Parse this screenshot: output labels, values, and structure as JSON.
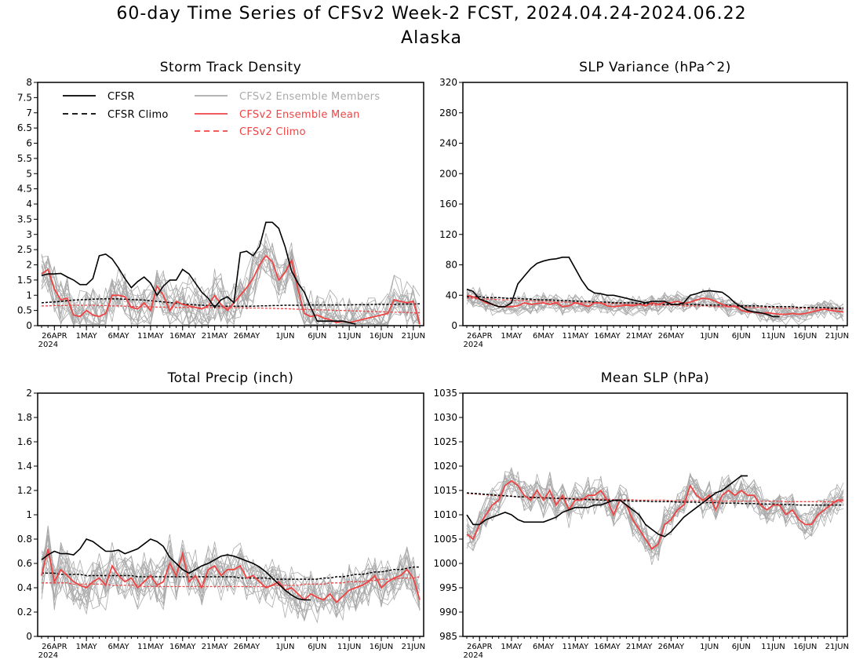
{
  "header": {
    "title_line1": "60-day Time Series of CFSv2 Week-2 FCST, 2024.04.24-2024.06.22",
    "title_line2": "Alaska"
  },
  "legend": {
    "cfsr": "CFSR",
    "cfsr_climo": "CFSR Climo",
    "members": "CFSv2 Ensemble Members",
    "mean": "CFSv2 Ensemble Mean",
    "cfsv2_climo": "CFSv2 Climo"
  },
  "colors": {
    "cfsr": "#000000",
    "members": "#aaaaaa",
    "mean": "#ee4444",
    "cfsv2_climo": "#ee4444"
  },
  "x_axis": {
    "ticks": [
      {
        "day": 2,
        "label": "26APR",
        "sub": "2024"
      },
      {
        "day": 7,
        "label": "1MAY"
      },
      {
        "day": 12,
        "label": "6MAY"
      },
      {
        "day": 17,
        "label": "11MAY"
      },
      {
        "day": 22,
        "label": "16MAY"
      },
      {
        "day": 27,
        "label": "21MAY"
      },
      {
        "day": 32,
        "label": "26MAY"
      },
      {
        "day": 38,
        "label": "1JUN"
      },
      {
        "day": 43,
        "label": "6JUN"
      },
      {
        "day": 48,
        "label": "11JUN"
      },
      {
        "day": 53,
        "label": "16JUN"
      },
      {
        "day": 58,
        "label": "21JUN"
      }
    ]
  },
  "chart_data": [
    {
      "id": "storm",
      "type": "line",
      "title": "Storm Track Density",
      "x_start": "2024-04-24",
      "x_end": "2024-06-22",
      "ylim": [
        0,
        8
      ],
      "yticks": [
        0,
        0.5,
        1,
        1.5,
        2,
        2.5,
        3,
        3.5,
        4,
        4.5,
        5,
        5.5,
        6,
        6.5,
        7,
        7.5,
        8
      ],
      "ytick_labels": [
        "0",
        "0.5",
        "1",
        "1.5",
        "2",
        "2.5",
        "3",
        "3.5",
        "4",
        "4.5",
        "5",
        "5.5",
        "6",
        "6.5",
        "7",
        "7.5",
        "8"
      ],
      "cfsr": [
        1.65,
        1.7,
        1.7,
        1.72,
        1.6,
        1.5,
        1.35,
        1.35,
        1.55,
        2.3,
        2.35,
        2.2,
        1.9,
        1.55,
        1.25,
        1.45,
        1.6,
        1.4,
        1.0,
        1.3,
        1.5,
        1.5,
        1.85,
        1.7,
        1.4,
        1.1,
        0.9,
        0.6,
        0.85,
        0.95,
        0.75,
        2.4,
        2.45,
        2.3,
        2.6,
        3.4,
        3.4,
        3.2,
        2.6,
        1.8,
        1.4,
        1.1,
        0.6,
        0.15,
        0.15,
        0.15,
        0.15,
        0.15,
        0.1,
        0.05,
        null,
        null,
        null,
        null,
        null,
        null,
        null,
        null,
        null,
        null
      ],
      "cfsr_climo": [
        0.75,
        0.77,
        0.78,
        0.8,
        0.82,
        0.84,
        0.85,
        0.86,
        0.87,
        0.88,
        0.88,
        0.88,
        0.88,
        0.87,
        0.86,
        0.85,
        0.84,
        0.82,
        0.8,
        0.78,
        0.76,
        0.74,
        0.72,
        0.7,
        0.68,
        0.67,
        0.66,
        0.65,
        0.64,
        0.64,
        0.64,
        0.64,
        0.64,
        0.64,
        0.65,
        0.65,
        0.66,
        0.66,
        0.67,
        0.67,
        0.67,
        0.68,
        0.68,
        0.68,
        0.68,
        0.68,
        0.68,
        0.68,
        0.68,
        0.69,
        0.69,
        0.69,
        0.7,
        0.7,
        0.7,
        0.7,
        0.71,
        0.71,
        0.71,
        0.72
      ],
      "mean": [
        1.7,
        1.85,
        1.2,
        0.85,
        0.9,
        0.35,
        0.3,
        0.5,
        0.35,
        0.3,
        0.4,
        1.0,
        1.0,
        0.95,
        0.6,
        0.55,
        0.75,
        0.5,
        1.3,
        1.0,
        0.5,
        0.8,
        0.7,
        0.65,
        0.6,
        0.55,
        0.65,
        1.0,
        0.7,
        0.5,
        0.75,
        1.0,
        1.25,
        1.55,
        2.0,
        2.3,
        2.1,
        1.5,
        1.75,
        2.15,
        1.2,
        0.4,
        0.3,
        0.35,
        0.25,
        0.2,
        0.1,
        0.15,
        0.1,
        0.15,
        0.2,
        0.25,
        0.3,
        0.35,
        0.4,
        0.85,
        0.8,
        0.75,
        0.8,
        0.05
      ],
      "cfsv2_climo": [
        0.65,
        0.65,
        0.66,
        0.66,
        0.66,
        0.67,
        0.67,
        0.67,
        0.67,
        0.66,
        0.66,
        0.65,
        0.65,
        0.64,
        0.63,
        0.63,
        0.62,
        0.62,
        0.61,
        0.61,
        0.6,
        0.6,
        0.6,
        0.6,
        0.59,
        0.59,
        0.59,
        0.59,
        0.59,
        0.59,
        0.59,
        0.59,
        0.58,
        0.58,
        0.58,
        0.57,
        0.57,
        0.56,
        0.56,
        0.55,
        0.54,
        0.54,
        0.53,
        0.52,
        0.52,
        0.51,
        0.5,
        0.5,
        0.49,
        0.48,
        0.48,
        0.47,
        0.46,
        0.46,
        0.45,
        0.44,
        0.44,
        0.43,
        0.42,
        0.42
      ]
    },
    {
      "id": "slpvar",
      "type": "line",
      "title": "SLP Variance (hPa^2)",
      "x_start": "2024-04-24",
      "x_end": "2024-06-22",
      "ylim": [
        0,
        320
      ],
      "yticks": [
        0,
        40,
        80,
        120,
        160,
        200,
        240,
        280,
        320
      ],
      "ytick_labels": [
        "0",
        "40",
        "80",
        "120",
        "160",
        "200",
        "240",
        "280",
        "320"
      ],
      "cfsr": [
        48,
        45,
        35,
        32,
        28,
        25,
        25,
        30,
        55,
        65,
        75,
        82,
        85,
        87,
        88,
        90,
        90,
        75,
        60,
        48,
        43,
        42,
        40,
        40,
        38,
        36,
        34,
        32,
        30,
        32,
        32,
        32,
        28,
        28,
        30,
        40,
        42,
        45,
        46,
        45,
        44,
        38,
        30,
        25,
        20,
        18,
        17,
        15,
        12,
        12,
        null,
        null,
        null,
        null,
        null,
        null,
        null,
        null,
        null,
        null
      ],
      "cfsr_climo": [
        38,
        38,
        38,
        37,
        37,
        37,
        36,
        36,
        36,
        35,
        35,
        34,
        34,
        34,
        33,
        33,
        33,
        32,
        32,
        32,
        31,
        31,
        31,
        30,
        30,
        30,
        30,
        29,
        29,
        29,
        29,
        28,
        28,
        28,
        28,
        28,
        28,
        27,
        27,
        27,
        27,
        27,
        26,
        26,
        26,
        26,
        26,
        25,
        25,
        25,
        25,
        25,
        24,
        24,
        24,
        24,
        24,
        23,
        23,
        23
      ],
      "mean": [
        40,
        38,
        35,
        30,
        28,
        25,
        25,
        25,
        26,
        30,
        28,
        29,
        30,
        28,
        30,
        25,
        26,
        30,
        28,
        25,
        30,
        30,
        26,
        25,
        26,
        27,
        26,
        28,
        26,
        30,
        28,
        31,
        30,
        32,
        29,
        31,
        34,
        36,
        35,
        32,
        28,
        25,
        26,
        20,
        18,
        18,
        16,
        17,
        16,
        15,
        15,
        16,
        15,
        16,
        18,
        20,
        22,
        20,
        19,
        18
      ],
      "cfsv2_climo": [
        36,
        36,
        35,
        35,
        35,
        34,
        34,
        34,
        33,
        33,
        33,
        32,
        32,
        32,
        31,
        31,
        31,
        30,
        30,
        30,
        30,
        29,
        29,
        29,
        29,
        28,
        28,
        28,
        28,
        27,
        27,
        27,
        27,
        27,
        26,
        26,
        26,
        26,
        26,
        25,
        25,
        25,
        25,
        25,
        24,
        24,
        24,
        24,
        24,
        23,
        23,
        23,
        23,
        23,
        22,
        22,
        22,
        22,
        22,
        22
      ]
    },
    {
      "id": "precip",
      "type": "line",
      "title": "Total Precip (inch)",
      "x_start": "2024-04-24",
      "x_end": "2024-06-22",
      "ylim": [
        0,
        2
      ],
      "yticks": [
        0,
        0.2,
        0.4,
        0.6,
        0.8,
        1,
        1.2,
        1.4,
        1.6,
        1.8,
        2
      ],
      "ytick_labels": [
        "0",
        "0.2",
        "0.4",
        "0.6",
        "0.8",
        "1",
        "1.2",
        "1.4",
        "1.6",
        "1.8",
        "2"
      ],
      "cfsr": [
        0.63,
        0.67,
        0.7,
        0.68,
        0.68,
        0.67,
        0.72,
        0.8,
        0.78,
        0.74,
        0.7,
        0.7,
        0.71,
        0.68,
        0.7,
        0.72,
        0.76,
        0.8,
        0.78,
        0.74,
        0.65,
        0.6,
        0.55,
        0.52,
        0.55,
        0.58,
        0.6,
        0.63,
        0.66,
        0.67,
        0.66,
        0.64,
        0.62,
        0.6,
        0.57,
        0.53,
        0.48,
        0.43,
        0.38,
        0.34,
        0.31,
        0.3,
        0.3,
        null,
        null,
        null,
        null,
        null,
        null,
        null,
        null,
        null,
        null,
        null,
        null,
        null,
        null,
        null,
        null,
        null
      ],
      "cfsr_climo": [
        0.52,
        0.52,
        0.52,
        0.51,
        0.51,
        0.51,
        0.51,
        0.5,
        0.5,
        0.5,
        0.5,
        0.5,
        0.5,
        0.5,
        0.5,
        0.49,
        0.49,
        0.49,
        0.49,
        0.49,
        0.49,
        0.49,
        0.49,
        0.49,
        0.49,
        0.49,
        0.49,
        0.49,
        0.49,
        0.49,
        0.49,
        0.48,
        0.48,
        0.48,
        0.48,
        0.48,
        0.47,
        0.47,
        0.47,
        0.47,
        0.47,
        0.47,
        0.47,
        0.47,
        0.48,
        0.48,
        0.49,
        0.49,
        0.5,
        0.51,
        0.51,
        0.52,
        0.53,
        0.53,
        0.54,
        0.55,
        0.55,
        0.56,
        0.57,
        0.57
      ],
      "mean": [
        0.5,
        0.72,
        0.45,
        0.55,
        0.5,
        0.45,
        0.42,
        0.4,
        0.45,
        0.48,
        0.42,
        0.58,
        0.5,
        0.45,
        0.48,
        0.4,
        0.45,
        0.5,
        0.42,
        0.45,
        0.6,
        0.5,
        0.68,
        0.45,
        0.5,
        0.4,
        0.55,
        0.58,
        0.5,
        0.55,
        0.55,
        0.58,
        0.48,
        0.5,
        0.45,
        0.4,
        0.42,
        0.45,
        0.38,
        0.4,
        0.35,
        0.3,
        0.35,
        0.32,
        0.3,
        0.35,
        0.28,
        0.33,
        0.38,
        0.4,
        0.42,
        0.45,
        0.5,
        0.4,
        0.45,
        0.48,
        0.5,
        0.55,
        0.48,
        0.3
      ],
      "cfsv2_climo": [
        0.44,
        0.44,
        0.44,
        0.44,
        0.44,
        0.43,
        0.43,
        0.43,
        0.43,
        0.43,
        0.43,
        0.42,
        0.42,
        0.42,
        0.42,
        0.42,
        0.41,
        0.41,
        0.41,
        0.41,
        0.41,
        0.41,
        0.41,
        0.41,
        0.41,
        0.41,
        0.41,
        0.41,
        0.41,
        0.41,
        0.41,
        0.41,
        0.41,
        0.41,
        0.41,
        0.41,
        0.42,
        0.42,
        0.42,
        0.42,
        0.42,
        0.43,
        0.43,
        0.43,
        0.43,
        0.44,
        0.44,
        0.44,
        0.45,
        0.45,
        0.45,
        0.46,
        0.46,
        0.47,
        0.47,
        0.47,
        0.48,
        0.48,
        0.48,
        0.49
      ]
    },
    {
      "id": "meanslp",
      "type": "line",
      "title": "Mean SLP (hPa)",
      "x_start": "2024-04-24",
      "x_end": "2024-06-22",
      "ylim": [
        985,
        1035
      ],
      "yticks": [
        985,
        990,
        995,
        1000,
        1005,
        1010,
        1015,
        1020,
        1025,
        1030,
        1035
      ],
      "ytick_labels": [
        "985",
        "990",
        "995",
        "1000",
        "1005",
        "1010",
        "1015",
        "1020",
        "1025",
        "1030",
        "1035"
      ],
      "cfsr": [
        1010,
        1008,
        1008,
        1009,
        1009.5,
        1010,
        1010.5,
        1010,
        1009,
        1008.5,
        1008.5,
        1008.5,
        1008.5,
        1009,
        1009.5,
        1010.5,
        1011,
        1011.5,
        1011.5,
        1011.5,
        1012,
        1012,
        1012.5,
        1013,
        1013,
        1012,
        1011,
        1010,
        1008,
        1007,
        1006,
        1005.5,
        1006.5,
        1008,
        1009.5,
        1010.5,
        1011.5,
        1012.5,
        1013.5,
        1014.5,
        1015,
        1016,
        1017,
        1018,
        1018,
        null,
        null,
        null,
        null,
        null,
        null,
        null,
        null,
        null,
        null,
        null,
        null,
        null,
        null,
        null
      ],
      "cfsr_climo": [
        1014.5,
        1014.4,
        1014.3,
        1014.2,
        1014.1,
        1014,
        1013.9,
        1013.8,
        1013.7,
        1013.7,
        1013.6,
        1013.5,
        1013.5,
        1013.4,
        1013.4,
        1013.3,
        1013.3,
        1013.2,
        1013.2,
        1013.1,
        1013.1,
        1013,
        1013,
        1012.9,
        1012.9,
        1012.9,
        1012.8,
        1012.8,
        1012.8,
        1012.7,
        1012.7,
        1012.7,
        1012.7,
        1012.6,
        1012.6,
        1012.6,
        1012.6,
        1012.5,
        1012.5,
        1012.5,
        1012.4,
        1012.4,
        1012.4,
        1012.3,
        1012.3,
        1012.3,
        1012.2,
        1012.2,
        1012.2,
        1012.1,
        1012.1,
        1012.1,
        1012,
        1012,
        1012,
        1012,
        1012,
        1012,
        1012,
        1012
      ],
      "mean": [
        1006,
        1005,
        1008,
        1010,
        1012,
        1013,
        1016,
        1017,
        1016,
        1014,
        1013,
        1015,
        1013,
        1015,
        1012,
        1014,
        1011,
        1013,
        1013,
        1014,
        1014,
        1015,
        1013,
        1010,
        1013,
        1012,
        1009,
        1007,
        1005,
        1003,
        1004,
        1008,
        1009,
        1011,
        1012,
        1016,
        1014,
        1013,
        1014,
        1011,
        1014,
        1015,
        1014,
        1015,
        1014,
        1014,
        1012,
        1011,
        1012,
        1012,
        1010,
        1011,
        1009,
        1008,
        1008,
        1010,
        1011,
        1012,
        1013,
        1013
      ],
      "cfsv2_climo": [
        1014.4,
        1014.3,
        1014.2,
        1014.1,
        1014,
        1013.9,
        1013.9,
        1013.8,
        1013.7,
        1013.7,
        1013.6,
        1013.6,
        1013.5,
        1013.5,
        1013.4,
        1013.4,
        1013.4,
        1013.3,
        1013.3,
        1013.3,
        1013.2,
        1013.2,
        1013.2,
        1013.1,
        1013.1,
        1013.1,
        1013.1,
        1013,
        1013,
        1013,
        1013,
        1013,
        1012.9,
        1012.9,
        1012.9,
        1012.9,
        1012.9,
        1012.9,
        1012.9,
        1012.8,
        1012.8,
        1012.8,
        1012.8,
        1012.8,
        1012.8,
        1012.8,
        1012.8,
        1012.8,
        1012.8,
        1012.8,
        1012.7,
        1012.7,
        1012.7,
        1012.7,
        1012.7,
        1012.7,
        1012.7,
        1012.7,
        1012.7,
        1012.7
      ]
    }
  ]
}
